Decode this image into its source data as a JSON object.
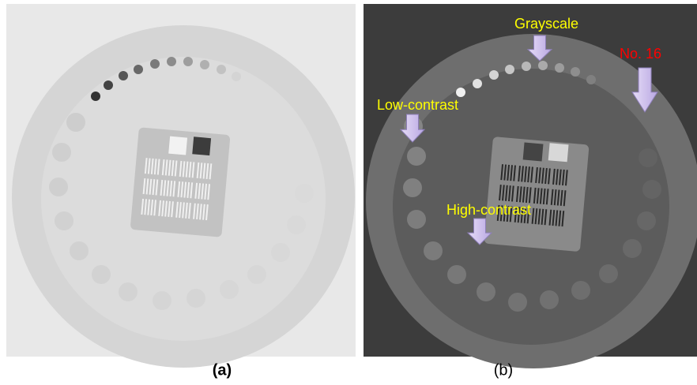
{
  "panels": [
    {
      "label": "(a)"
    },
    {
      "label": "(b)",
      "annotations": [
        {
          "text": "Grayscale"
        },
        {
          "text": "No. 16"
        },
        {
          "text": "Low-contrast"
        },
        {
          "text": "High-contrast"
        }
      ]
    }
  ]
}
